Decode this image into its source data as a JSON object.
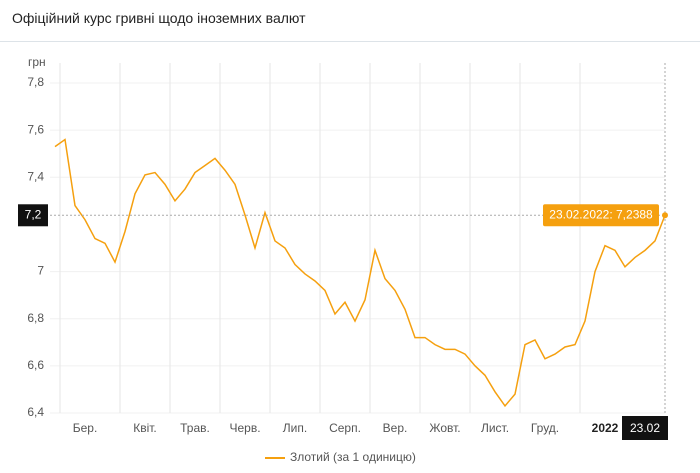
{
  "header": {
    "title": "Офіційний курс гривні щодо іноземних валют"
  },
  "chart_data": {
    "type": "line",
    "y_label": "грн",
    "categories": [
      null,
      null,
      null,
      "Бер.",
      null,
      null,
      null,
      null,
      null,
      "Квіт.",
      null,
      null,
      null,
      null,
      "Трав.",
      null,
      null,
      null,
      null,
      "Черв.",
      null,
      null,
      null,
      null,
      "Лип.",
      null,
      null,
      null,
      null,
      "Серп.",
      null,
      null,
      null,
      null,
      "Вер.",
      null,
      null,
      null,
      null,
      "Жовт.",
      null,
      null,
      null,
      null,
      "Лист.",
      null,
      null,
      null,
      null,
      "Груд.",
      null,
      null,
      null,
      null,
      null,
      "2022",
      null,
      null,
      null,
      null,
      null,
      "23.02"
    ],
    "series": [
      {
        "name": "Злотий (за 1 одиницю)",
        "color": "#f5a00f",
        "values": [
          7.53,
          7.56,
          7.28,
          7.22,
          7.14,
          7.12,
          7.04,
          7.17,
          7.33,
          7.41,
          7.42,
          7.37,
          7.3,
          7.35,
          7.42,
          7.45,
          7.48,
          7.43,
          7.37,
          7.24,
          7.1,
          7.25,
          7.13,
          7.1,
          7.03,
          6.99,
          6.96,
          6.92,
          6.82,
          6.87,
          6.79,
          6.88,
          7.09,
          6.97,
          6.92,
          6.84,
          6.72,
          6.72,
          6.69,
          6.67,
          6.67,
          6.65,
          6.6,
          6.56,
          6.49,
          6.43,
          6.48,
          6.69,
          6.71,
          6.63,
          6.65,
          6.68,
          6.69,
          6.79,
          7.0,
          7.11,
          7.09,
          7.02,
          7.06,
          7.09,
          7.13,
          7.2388
        ]
      }
    ],
    "ylim": [
      6.4,
      7.8
    ],
    "yticks": [
      {
        "value": 6.4,
        "label": "6,4"
      },
      {
        "value": 6.6,
        "label": "6,6"
      },
      {
        "value": 6.8,
        "label": "6,8"
      },
      7,
      {
        "value": 7.4,
        "label": "7,4"
      },
      {
        "value": 7.6,
        "label": "7,6"
      },
      {
        "value": 7.8,
        "label": "7,8"
      }
    ],
    "crosshair": {
      "y_label": "7,2",
      "tooltip": "23.02.2022: 7,2388"
    },
    "grid": true
  }
}
